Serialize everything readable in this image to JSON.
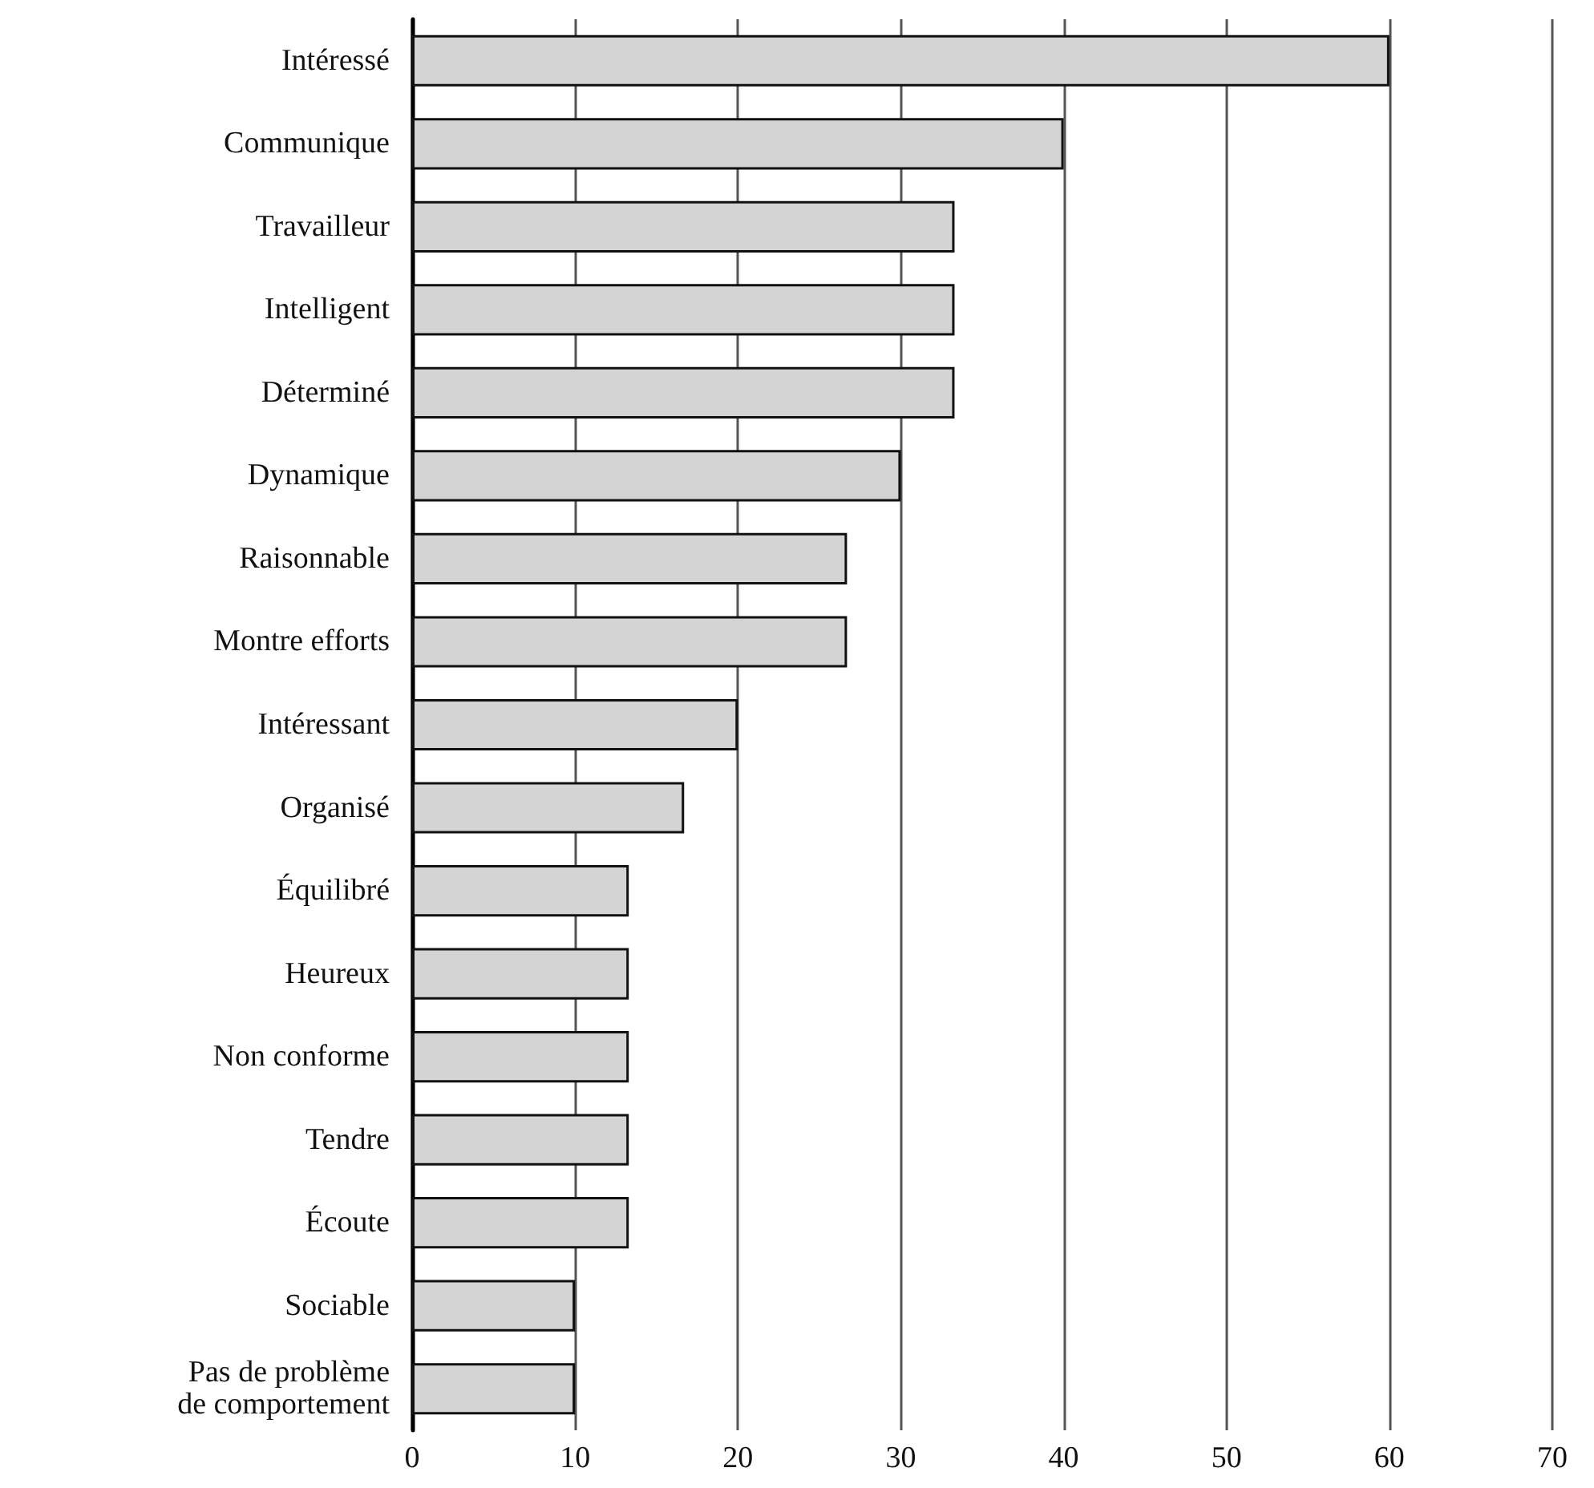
{
  "chart_data": {
    "type": "bar",
    "orientation": "horizontal",
    "categories": [
      "Intéressé",
      "Communique",
      "Travailleur",
      "Intelligent",
      "Déterminé",
      "Dynamique",
      "Raisonnable",
      "Montre efforts",
      "Intéressant",
      "Organisé",
      "Équilibré",
      "Heureux",
      "Non conforme",
      "Tendre",
      "Écoute",
      "Sociable",
      "Pas de problème\nde comportement"
    ],
    "values": [
      60,
      40,
      33.3,
      33.3,
      33.3,
      30,
      26.7,
      26.7,
      20,
      16.7,
      13.3,
      13.3,
      13.3,
      13.3,
      13.3,
      10,
      10
    ],
    "color": "#d4d4d4",
    "xlim": [
      0,
      70
    ],
    "xticks": [
      0,
      10,
      20,
      30,
      40,
      50,
      60,
      70
    ],
    "grid": "x"
  }
}
